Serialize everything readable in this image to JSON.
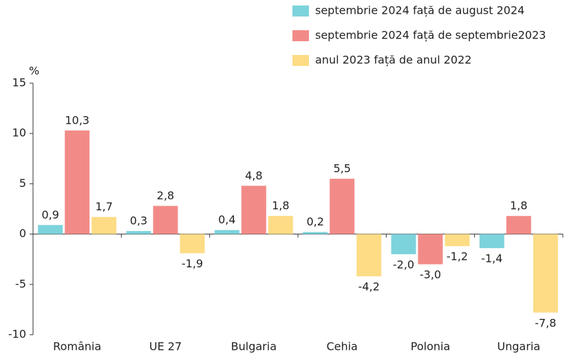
{
  "chart_data": {
    "type": "bar",
    "y_unit": "%",
    "categories": [
      "România",
      "UE 27",
      "Bulgaria",
      "Cehia",
      "Polonia",
      "Ungaria"
    ],
    "series": [
      {
        "name": "septembrie 2024 față de august 2024",
        "color": "#7dd3dc",
        "values": [
          0.9,
          0.3,
          0.4,
          0.2,
          -2.0,
          -1.4
        ],
        "value_labels": [
          "0,9",
          "0,3",
          "0,4",
          "0,2",
          "-2,0",
          "-1,4"
        ]
      },
      {
        "name": "septembrie 2024 față de septembrie2023",
        "color": "#f28b88",
        "values": [
          10.3,
          2.8,
          4.8,
          5.5,
          -3.0,
          1.8
        ],
        "value_labels": [
          "10,3",
          "2,8",
          "4,8",
          "5,5",
          "-3,0",
          "1,8"
        ]
      },
      {
        "name": "anul 2023 față de anul 2022",
        "color": "#fddc85",
        "values": [
          1.7,
          -1.9,
          1.8,
          -4.2,
          -1.2,
          -7.8
        ],
        "value_labels": [
          "1,7",
          "-1,9",
          "1,8",
          "-4,2",
          "-1,2",
          "-7,8"
        ]
      }
    ],
    "ylim": [
      -10,
      15
    ],
    "yticks": [
      -10,
      -5,
      0,
      5,
      10,
      15
    ]
  }
}
